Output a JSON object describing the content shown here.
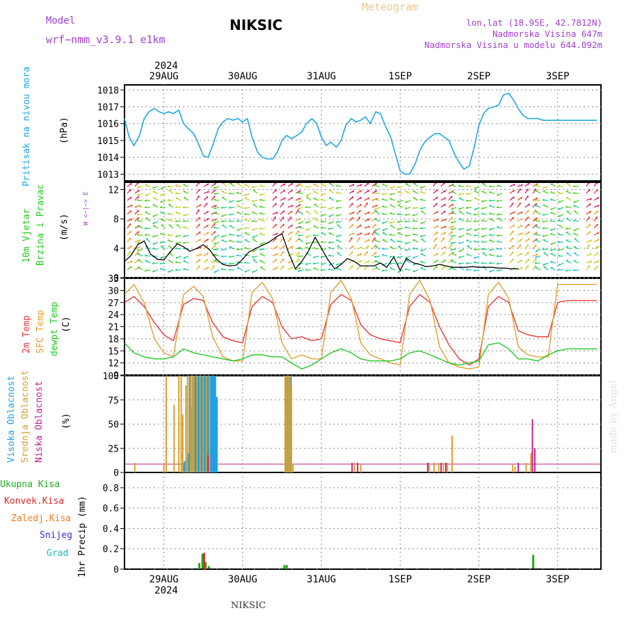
{
  "header": {
    "model_label": "Model",
    "model_name": "wrf−nmm_v3.9.1  e1km",
    "station": "NIKSIC",
    "meteogram": "Meteogram",
    "lonlat": "lon,lat (18.95E, 42.7812N)",
    "elevation": "Nadmorska Visina 647m",
    "elevation_model": "Nadmorska Visina u modelu 644.092m",
    "year_top": "2024",
    "year_bottom": "2024",
    "footer_station": "NIKSIC",
    "credit": "made by Angel"
  },
  "colors": {
    "pressure": "#1ea8e0",
    "temp2m": "#e8383a",
    "sfc_temp": "#e0a030",
    "dewpoint": "#22c822",
    "cloud_high": "#1ea0e8",
    "cloud_mid": "#d8a030",
    "cloud_low": "#c0208a",
    "precip_total": "#22aa22",
    "precip_conv": "#e02828",
    "precip_frozen": "#f07820",
    "snow": "#3030d0",
    "graupel": "#20b8b8",
    "wind_speed": "#000000",
    "frame": "#000000",
    "model_text": "#a040d0"
  },
  "chart_data": [
    {
      "type": "line",
      "title": "Pritisak na nivou mora",
      "ylabel": "(hPa)",
      "x_unit": "days from 29AUG 00 UTC",
      "xlim": [
        -0.5,
        5.55
      ],
      "ylim": [
        1012.6,
        1018.3
      ],
      "yticks": [
        1013,
        1014,
        1015,
        1016,
        1017,
        1018
      ],
      "xtick_labels": [
        "29AUG",
        "30AUG",
        "31AUG",
        "1SEP",
        "2SEP",
        "3SEP"
      ],
      "grid": true,
      "series": [
        {
          "name": "Pritisak na nivou mora",
          "x": [
            -0.5,
            -0.44,
            -0.38,
            -0.31,
            -0.25,
            -0.19,
            -0.12,
            -0.06,
            0.0,
            0.06,
            0.12,
            0.19,
            0.25,
            0.31,
            0.38,
            0.44,
            0.5,
            0.56,
            0.62,
            0.69,
            0.75,
            0.81,
            0.88,
            0.94,
            1.0,
            1.06,
            1.12,
            1.19,
            1.25,
            1.31,
            1.38,
            1.44,
            1.5,
            1.56,
            1.62,
            1.69,
            1.75,
            1.81,
            1.88,
            1.94,
            2.0,
            2.06,
            2.12,
            2.19,
            2.25,
            2.31,
            2.38,
            2.44,
            2.5,
            2.56,
            2.62,
            2.69,
            2.75,
            2.81,
            2.88,
            2.94,
            3.0,
            3.06,
            3.12,
            3.19,
            3.25,
            3.31,
            3.38,
            3.44,
            3.5,
            3.56,
            3.62,
            3.69,
            3.75,
            3.81,
            3.88,
            3.94,
            4.0,
            4.06,
            4.12,
            4.19,
            4.25,
            4.31,
            4.38,
            4.44,
            4.5,
            4.56,
            4.62,
            4.69,
            4.75,
            4.81,
            4.88,
            4.94,
            5.0,
            5.06,
            5.12,
            5.19,
            5.25,
            5.31,
            5.38,
            5.44,
            5.5
          ],
          "values": [
            1016.3,
            1015.2,
            1014.7,
            1015.3,
            1016.3,
            1016.7,
            1016.9,
            1016.7,
            1016.6,
            1016.7,
            1016.6,
            1016.8,
            1016.0,
            1015.7,
            1015.4,
            1014.8,
            1014.1,
            1014.0,
            1014.7,
            1015.7,
            1016.1,
            1016.3,
            1016.2,
            1016.3,
            1016.1,
            1016.3,
            1015.2,
            1014.3,
            1014.0,
            1013.9,
            1013.9,
            1014.3,
            1015.0,
            1015.3,
            1015.1,
            1015.3,
            1015.5,
            1016.0,
            1016.3,
            1016.0,
            1015.2,
            1014.7,
            1014.9,
            1014.6,
            1015.0,
            1015.9,
            1016.3,
            1016.1,
            1016.2,
            1016.4,
            1016.0,
            1016.7,
            1016.6,
            1015.9,
            1015.2,
            1014.2,
            1013.2,
            1013.0,
            1013.0,
            1013.6,
            1014.4,
            1014.9,
            1015.2,
            1015.4,
            1015.4,
            1015.2,
            1015.0,
            1014.2,
            1013.7,
            1013.3,
            1013.5,
            1014.6,
            1015.9,
            1016.6,
            1016.9,
            1017.0,
            1017.1,
            1017.7,
            1017.8,
            1017.4,
            1016.9,
            1016.5,
            1016.3,
            1016.3,
            1016.3,
            1016.2,
            1016.2,
            1016.2,
            1016.2,
            1016.2,
            1016.2,
            1016.2,
            1016.2,
            1016.2,
            1016.2,
            1016.2,
            1016.2
          ]
        }
      ]
    },
    {
      "type": "line",
      "title": "10m Vjetar Brzina i Pravac",
      "ylabel": "(m/s)",
      "ylim": [
        0,
        13
      ],
      "yticks": [
        0,
        4,
        8,
        12
      ],
      "compass": "W <−|−> E",
      "grid": true,
      "series": [
        {
          "name": "Brzina",
          "x": [
            -0.5,
            -0.42,
            -0.33,
            -0.25,
            -0.17,
            -0.08,
            0.0,
            0.08,
            0.17,
            0.25,
            0.33,
            0.42,
            0.5,
            0.58,
            0.67,
            0.75,
            0.83,
            0.92,
            1.0,
            1.08,
            1.17,
            1.25,
            1.33,
            1.42,
            1.5,
            1.58,
            1.67,
            1.75,
            1.83,
            1.92,
            2.0,
            2.08,
            2.17,
            2.25,
            2.33,
            2.42,
            2.5,
            2.58,
            2.67,
            2.75,
            2.83,
            2.92,
            3.0,
            3.08,
            3.17,
            3.25,
            3.33,
            3.42,
            3.5,
            3.58,
            3.67,
            3.75,
            3.83,
            3.92,
            4.0,
            4.08,
            4.17,
            4.25,
            4.33,
            4.42,
            4.5
          ],
          "values": [
            2.2,
            3.0,
            4.5,
            5.0,
            3.2,
            2.5,
            2.4,
            3.5,
            4.6,
            4.2,
            3.6,
            4.0,
            4.5,
            3.8,
            2.5,
            1.8,
            1.6,
            1.7,
            2.5,
            3.5,
            4.0,
            4.4,
            4.8,
            5.5,
            6.0,
            3.5,
            1.2,
            2.2,
            3.5,
            5.5,
            4.0,
            2.5,
            1.2,
            1.8,
            2.6,
            2.2,
            1.6,
            1.6,
            1.6,
            2.0,
            1.4,
            2.8,
            1.0,
            2.6,
            2.0,
            1.8,
            1.5,
            1.6,
            1.8,
            1.6,
            1.4,
            1.4,
            1.4,
            1.5,
            1.4,
            1.4,
            1.4,
            1.3,
            1.3,
            1.2,
            1.2
          ]
        }
      ]
    },
    {
      "type": "line",
      "ylabel": "(C)",
      "ylim": [
        9,
        33
      ],
      "yticks": [
        9,
        12,
        15,
        18,
        21,
        24,
        27,
        30,
        33
      ],
      "grid": true,
      "series": [
        {
          "name": "2m Temp",
          "x": [
            -0.5,
            -0.38,
            -0.25,
            -0.12,
            0.0,
            0.12,
            0.25,
            0.38,
            0.5,
            0.62,
            0.75,
            0.88,
            1.0,
            1.12,
            1.25,
            1.38,
            1.5,
            1.62,
            1.75,
            1.88,
            2.0,
            2.12,
            2.25,
            2.38,
            2.5,
            2.62,
            2.75,
            2.88,
            3.0,
            3.12,
            3.25,
            3.38,
            3.5,
            3.62,
            3.75,
            3.88,
            4.0,
            4.12,
            4.25,
            4.38,
            4.5,
            4.62,
            4.75,
            4.88,
            5.0,
            5.12,
            5.25,
            5.38,
            5.5
          ],
          "values": [
            27.0,
            28.5,
            26.0,
            22.0,
            19.0,
            17.5,
            26.5,
            28.0,
            27.5,
            22.0,
            18.5,
            17.5,
            17.0,
            26.0,
            28.5,
            27.0,
            21.0,
            18.0,
            18.5,
            17.5,
            18.0,
            26.5,
            29.0,
            27.5,
            21.5,
            19.0,
            18.0,
            17.5,
            17.0,
            26.0,
            29.0,
            27.0,
            21.0,
            16.5,
            13.0,
            11.5,
            13.0,
            26.0,
            28.5,
            27.0,
            20.0,
            19.0,
            18.5,
            18.5,
            27.0,
            27.5,
            27.5,
            27.5,
            27.5
          ]
        },
        {
          "name": "SFC Temp",
          "x": [
            -0.5,
            -0.38,
            -0.25,
            -0.12,
            0.0,
            0.12,
            0.25,
            0.38,
            0.5,
            0.62,
            0.75,
            0.88,
            1.0,
            1.12,
            1.25,
            1.38,
            1.5,
            1.62,
            1.75,
            1.88,
            2.0,
            2.12,
            2.25,
            2.38,
            2.5,
            2.62,
            2.75,
            2.88,
            3.0,
            3.12,
            3.25,
            3.38,
            3.5,
            3.62,
            3.75,
            3.88,
            4.0,
            4.12,
            4.25,
            4.38,
            4.5,
            4.62,
            4.75,
            4.88,
            5.0,
            5.12,
            5.25,
            5.38,
            5.5
          ],
          "values": [
            29.0,
            31.5,
            27.0,
            18.0,
            14.5,
            13.5,
            29.0,
            31.0,
            28.5,
            18.5,
            13.5,
            12.5,
            12.5,
            29.5,
            32.0,
            28.0,
            17.0,
            13.0,
            14.0,
            13.0,
            13.0,
            29.5,
            32.5,
            28.0,
            17.0,
            14.0,
            13.0,
            12.0,
            11.5,
            29.0,
            32.5,
            27.5,
            16.0,
            12.0,
            11.0,
            10.5,
            11.0,
            29.0,
            32.0,
            28.0,
            16.0,
            14.0,
            13.5,
            13.5,
            31.5,
            31.5,
            31.5,
            31.5,
            31.5
          ]
        },
        {
          "name": "dewpt Temp",
          "x": [
            -0.5,
            -0.38,
            -0.25,
            -0.12,
            0.0,
            0.12,
            0.25,
            0.38,
            0.5,
            0.62,
            0.75,
            0.88,
            1.0,
            1.12,
            1.25,
            1.38,
            1.5,
            1.62,
            1.75,
            1.88,
            2.0,
            2.12,
            2.25,
            2.38,
            2.5,
            2.62,
            2.75,
            2.88,
            3.0,
            3.12,
            3.25,
            3.38,
            3.5,
            3.62,
            3.75,
            3.88,
            4.0,
            4.12,
            4.25,
            4.38,
            4.5,
            4.62,
            4.75,
            4.88,
            5.0,
            5.12,
            5.25,
            5.38,
            5.5
          ],
          "values": [
            17.0,
            14.5,
            13.5,
            13.0,
            13.0,
            13.5,
            15.5,
            14.5,
            14.0,
            13.5,
            13.0,
            12.5,
            13.0,
            14.0,
            14.0,
            13.5,
            13.5,
            12.0,
            10.5,
            11.5,
            13.0,
            14.5,
            15.5,
            14.5,
            13.0,
            12.5,
            12.5,
            12.5,
            13.0,
            14.5,
            15.0,
            14.0,
            13.0,
            12.0,
            11.5,
            12.0,
            12.5,
            16.5,
            17.0,
            15.5,
            13.0,
            13.0,
            12.5,
            14.0,
            15.0,
            15.5,
            15.5,
            15.5,
            15.5
          ]
        }
      ]
    },
    {
      "type": "bar",
      "ylabel": "(%)",
      "ylim": [
        0,
        100
      ],
      "yticks": [
        0,
        25,
        50,
        75,
        100
      ],
      "grid": true,
      "series": [
        {
          "name": "Visoka Oblacnost",
          "x": [
            0.25,
            0.27,
            0.29,
            0.31,
            0.33,
            0.35,
            0.37,
            0.39,
            0.41,
            0.43,
            0.45,
            0.47,
            0.49,
            0.51,
            0.53,
            0.55,
            0.57,
            0.59,
            0.61,
            0.63,
            0.65,
            0.67,
            1.55,
            1.57,
            1.59,
            1.61
          ],
          "values": [
            10,
            12,
            15,
            20,
            100,
            68,
            100,
            100,
            100,
            100,
            100,
            100,
            100,
            100,
            100,
            100,
            100,
            100,
            100,
            100,
            100,
            78,
            100,
            100,
            100,
            100
          ]
        },
        {
          "name": "Srednja Oblacnost",
          "x": [
            -0.37,
            0.0,
            0.03,
            0.13,
            0.19,
            0.22,
            0.24,
            0.28,
            0.3,
            0.34,
            0.36,
            0.38,
            0.42,
            0.46,
            0.5,
            0.54,
            0.58,
            1.54,
            1.56,
            1.58,
            1.6,
            1.62,
            1.64,
            2.42,
            2.5,
            3.37,
            3.43,
            3.49,
            3.55,
            3.6,
            3.66,
            4.43,
            4.46,
            4.6,
            4.66
          ],
          "values": [
            10,
            10,
            100,
            70,
            100,
            100,
            60,
            90,
            100,
            100,
            100,
            100,
            100,
            100,
            100,
            100,
            100,
            100,
            100,
            100,
            100,
            90,
            8,
            10,
            8,
            10,
            10,
            10,
            10,
            10,
            38,
            8,
            6,
            10,
            20
          ]
        },
        {
          "name": "Niska Oblacnost",
          "x": [
            0.56,
            2.39,
            2.46,
            3.35,
            3.52,
            3.58,
            4.5,
            4.68,
            4.71
          ],
          "values": [
            18,
            10,
            10,
            10,
            10,
            10,
            10,
            55,
            25
          ]
        }
      ]
    },
    {
      "type": "bar",
      "ylabel": "1hr Precip (mm)",
      "ylim": [
        0,
        0.95
      ],
      "yticks": [
        0,
        0.2,
        0.4,
        0.6,
        0.8
      ],
      "grid": true,
      "series": [
        {
          "name": "Ukupna Kisa",
          "x": [
            0.45,
            0.49,
            0.53,
            0.57,
            1.53,
            1.56,
            4.69
          ],
          "values": [
            0.06,
            0.15,
            0.07,
            0.03,
            0.04,
            0.04,
            0.14
          ]
        },
        {
          "name": "Konvek.Kisa",
          "x": [
            0.51
          ],
          "values": [
            0.16
          ]
        },
        {
          "name": "Zaledj.Kisa",
          "x": [],
          "values": []
        },
        {
          "name": "Snijeg",
          "x": [],
          "values": []
        },
        {
          "name": "Grad",
          "x": [],
          "values": []
        }
      ]
    }
  ]
}
